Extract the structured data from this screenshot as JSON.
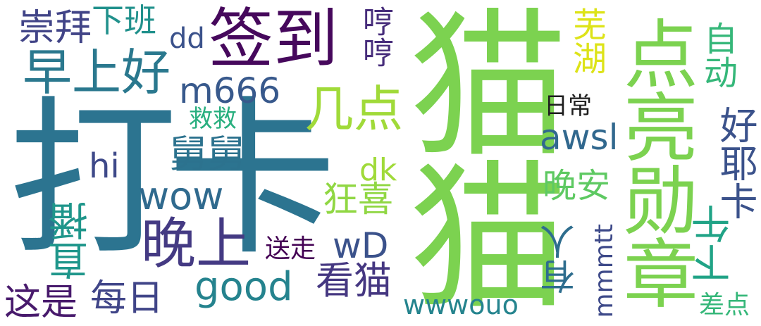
{
  "words": {
    "daka": "打卡",
    "maomao": "猫猫",
    "diandianliang": "点亮勋章",
    "qiandao": "签到",
    "zaoshanghao": "早上好",
    "wanshang": "晚上",
    "chongbai": "崇拜",
    "xiaban": "下班",
    "dd": "dd",
    "hengheng": "哼哼",
    "m666": "m666",
    "jidian": "几点",
    "jiujiu": "救救",
    "jiujiu2": "舅舅",
    "hi": "hi",
    "wow": "wow",
    "dk": "dk",
    "kuangxi": "狂喜",
    "zhibo": "直播",
    "songzou": "送走",
    "wD": "wD",
    "kanmao": "看猫",
    "zheshi": "这是",
    "meiri": "每日",
    "good": "good",
    "wwwouo": "wwwouo",
    "wuhu": "芜湖",
    "richang": "日常",
    "awsl": "awsl",
    "wanan": "晚安",
    "youren": "有人",
    "mmmtt": "mmmtt",
    "xiawu": "下午",
    "zidong": "自动",
    "haoyeka": "好耶卡",
    "chadian": "差点"
  }
}
